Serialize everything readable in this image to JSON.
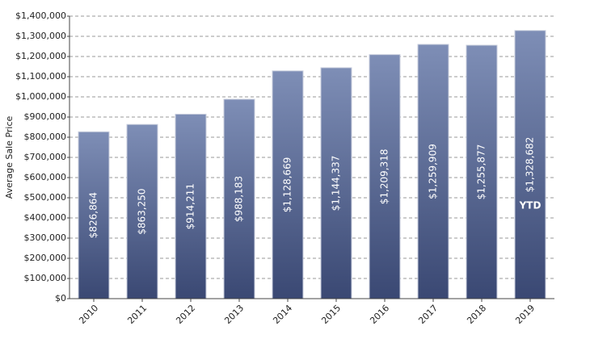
{
  "chart_data": {
    "type": "bar",
    "ylabel": "Average Sale Price",
    "categories": [
      "2010",
      "2011",
      "2012",
      "2013",
      "2014",
      "2015",
      "2016",
      "2017",
      "2018",
      "2019"
    ],
    "values": [
      826864,
      863250,
      914211,
      988183,
      1128669,
      1144337,
      1209318,
      1259909,
      1255877,
      1328682
    ],
    "value_labels": [
      "$826,864",
      "$863,250",
      "$914,211",
      "$988,183",
      "$1,128,669",
      "$1,144,337",
      "$1,209,318",
      "$1,259,909",
      "$1,255,877",
      "$1,328,682"
    ],
    "gradient": [
      "#7e8eb6",
      "#3a4873"
    ],
    "ylim": [
      0,
      1400000
    ],
    "yticks": [
      {
        "value": 0,
        "label": "$0"
      },
      {
        "value": 100000,
        "label": "$100,000"
      },
      {
        "value": 200000,
        "label": "$200,000"
      },
      {
        "value": 300000,
        "label": "$300,000"
      },
      {
        "value": 400000,
        "label": "$400,000"
      },
      {
        "value": 500000,
        "label": "$500,000"
      },
      {
        "value": 600000,
        "label": "$600,000"
      },
      {
        "value": 700000,
        "label": "$700,000"
      },
      {
        "value": 800000,
        "label": "$800,000"
      },
      {
        "value": 900000,
        "label": "$900,000"
      },
      {
        "value": 1000000,
        "label": "$1,000,000"
      },
      {
        "value": 1100000,
        "label": "$1,100,000"
      },
      {
        "value": 1200000,
        "label": "$1,200,000"
      },
      {
        "value": 1300000,
        "label": "$1,300,000"
      },
      {
        "value": 1400000,
        "label": "$1,400,000"
      }
    ],
    "grid": true,
    "annotations": [
      {
        "text": "YTD",
        "category": "2019"
      }
    ]
  }
}
